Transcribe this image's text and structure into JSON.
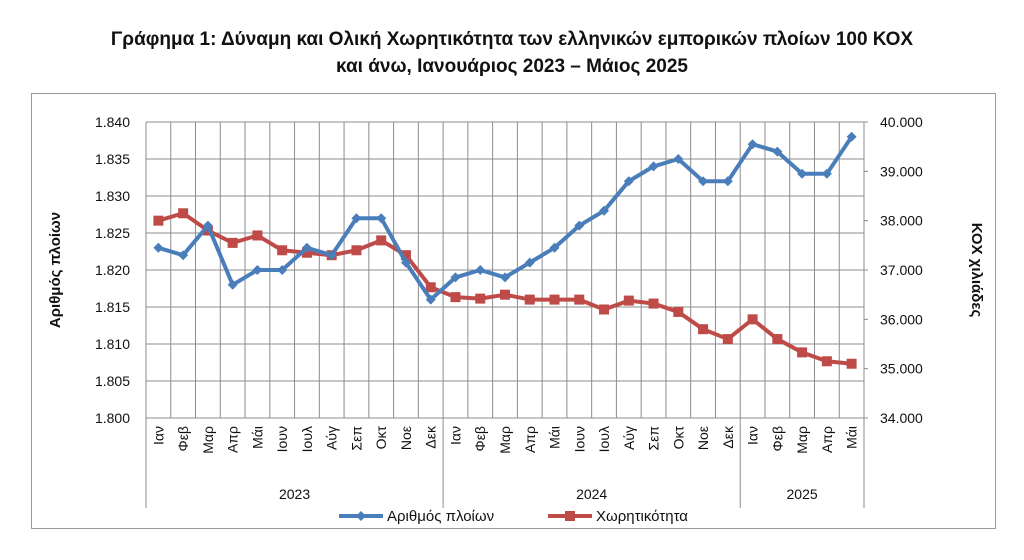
{
  "title_line1": "Γράφημα 1: Δύναμη και Ολική Χωρητικότητα των ελληνικών εμπορικών πλοίων 100 ΚΟΧ",
  "title_line2": "και άνω, Ιανουάριος 2023 – Μάιος 2025",
  "chart_data": {
    "type": "line",
    "title": "Γράφημα 1: Δύναμη και Ολική Χωρητικότητα των ελληνικών εμπορικών πλοίων 100 ΚΟΧ και άνω, Ιανουάριος 2023 – Μάιος 2025",
    "categories": [
      "Ιαν",
      "Φεβ",
      "Μαρ",
      "Απρ",
      "Μάι",
      "Ιουν",
      "Ιουλ",
      "Αύγ",
      "Σεπ",
      "Οκτ",
      "Νοε",
      "Δεκ",
      "Ιαν",
      "Φεβ",
      "Μαρ",
      "Απρ",
      "Μάι",
      "Ιουν",
      "Ιουλ",
      "Αύγ",
      "Σεπ",
      "Οκτ",
      "Νοε",
      "Δεκ",
      "Ιαν",
      "Φεβ",
      "Μαρ",
      "Απρ",
      "Μάι"
    ],
    "years": [
      {
        "label": "2023",
        "start": 0,
        "end": 11
      },
      {
        "label": "2024",
        "start": 12,
        "end": 23
      },
      {
        "label": "2025",
        "start": 24,
        "end": 28
      }
    ],
    "series": [
      {
        "name": "Αριθμός πλοίων",
        "axis": "left",
        "color": "#4a7ebb",
        "marker": "diamond",
        "values": [
          1823,
          1822,
          1826,
          1818,
          1820,
          1820,
          1823,
          1822,
          1827,
          1827,
          1821,
          1816,
          1819,
          1820,
          1819,
          1821,
          1823,
          1826,
          1828,
          1832,
          1834,
          1835,
          1832,
          1832,
          1837,
          1836,
          1833,
          1833,
          1838
        ]
      },
      {
        "name": "Χωρητικότητα",
        "axis": "right",
        "color": "#be4b48",
        "marker": "square",
        "values": [
          38000,
          38150,
          37800,
          37550,
          37700,
          37400,
          37350,
          37300,
          37400,
          37600,
          37300,
          36650,
          36450,
          36420,
          36500,
          36400,
          36400,
          36400,
          36200,
          36380,
          36320,
          36150,
          35800,
          35600,
          36000,
          35600,
          35330,
          35150,
          35100
        ]
      }
    ],
    "ylabel": "Αριθμός πλοίων",
    "y2label": "ΚΟΧ χιλιάδες",
    "ylim": [
      1800,
      1840
    ],
    "y2lim": [
      34000,
      40000
    ],
    "yticks": [
      "1.800",
      "1.805",
      "1.810",
      "1.815",
      "1.820",
      "1.825",
      "1.830",
      "1.835",
      "1.840"
    ],
    "y2ticks": [
      "34.000",
      "35.000",
      "36.000",
      "37.000",
      "38.000",
      "39.000",
      "40.000"
    ],
    "grid": true,
    "legend": "bottom"
  }
}
